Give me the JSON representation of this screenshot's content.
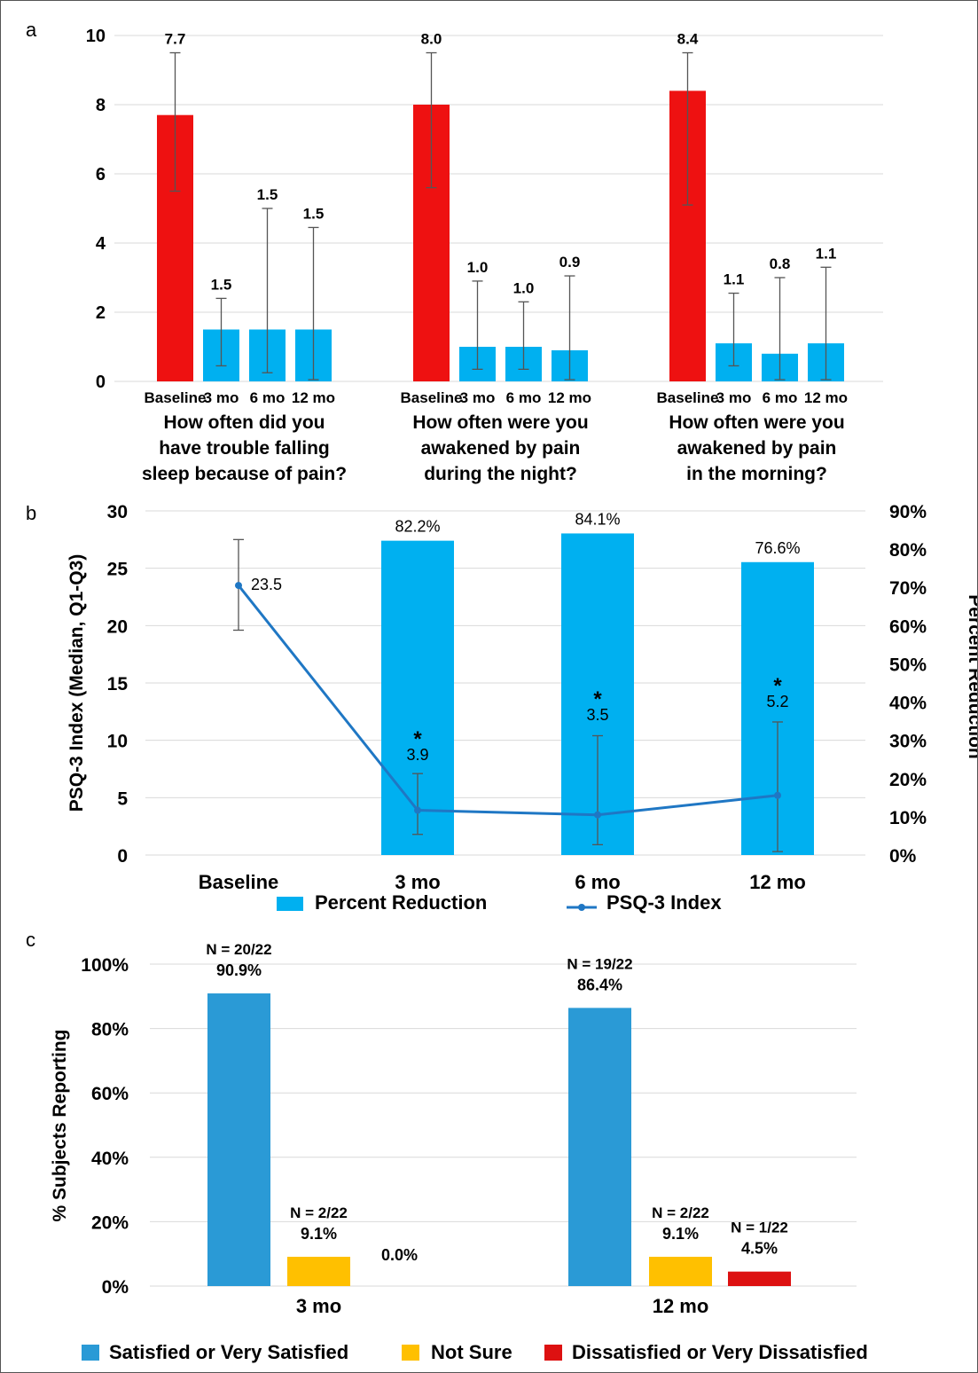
{
  "colors": {
    "red": "#ee1111",
    "cyan": "#00b0f0",
    "blue_c": "#2a9ad6",
    "yellow": "#ffc000",
    "dark_red": "#dd1111",
    "line": "#1f77c4",
    "grid": "#d9d9d9",
    "error": "#555555"
  },
  "chart_data": [
    {
      "panel": "a",
      "type": "bar",
      "ylim": [
        0,
        10
      ],
      "yticks": [
        "0",
        "2",
        "4",
        "6",
        "8",
        "10"
      ],
      "groups": [
        {
          "question": [
            "How often did you",
            "have trouble falling",
            "sleep because of pain?"
          ],
          "bars": [
            {
              "label": "Baseline",
              "value": 7.7,
              "display": "7.7",
              "err_low": 5.5,
              "err_high": 9.5,
              "color": "red"
            },
            {
              "label": "3 mo",
              "value": 1.5,
              "display": "1.5",
              "err_low": 0.45,
              "err_high": 2.4,
              "color": "cyan"
            },
            {
              "label": "6 mo",
              "value": 1.5,
              "display": "1.5",
              "err_low": 0.25,
              "err_high": 5.0,
              "color": "cyan"
            },
            {
              "label": "12 mo",
              "value": 1.5,
              "display": "1.5",
              "err_low": 0.05,
              "err_high": 4.45,
              "color": "cyan"
            }
          ]
        },
        {
          "question": [
            "How often were you",
            "awakened by pain",
            "during the night?"
          ],
          "bars": [
            {
              "label": "Baseline",
              "value": 8.0,
              "display": "8.0",
              "err_low": 5.6,
              "err_high": 9.5,
              "color": "red"
            },
            {
              "label": "3 mo",
              "value": 1.0,
              "display": "1.0",
              "err_low": 0.35,
              "err_high": 2.9,
              "color": "cyan"
            },
            {
              "label": "6 mo",
              "value": 1.0,
              "display": "1.0",
              "err_low": 0.35,
              "err_high": 2.3,
              "color": "cyan"
            },
            {
              "label": "12 mo",
              "value": 0.9,
              "display": "0.9",
              "err_low": 0.05,
              "err_high": 3.05,
              "color": "cyan"
            }
          ]
        },
        {
          "question": [
            "How often were you",
            "awakened by pain",
            "in the morning?"
          ],
          "bars": [
            {
              "label": "Baseline",
              "value": 8.4,
              "display": "8.4",
              "err_low": 5.1,
              "err_high": 9.5,
              "color": "red"
            },
            {
              "label": "3 mo",
              "value": 1.1,
              "display": "1.1",
              "err_low": 0.45,
              "err_high": 2.55,
              "color": "cyan"
            },
            {
              "label": "6 mo",
              "value": 0.8,
              "display": "0.8",
              "err_low": 0.05,
              "err_high": 3.0,
              "color": "cyan"
            },
            {
              "label": "12 mo",
              "value": 1.1,
              "display": "1.1",
              "err_low": 0.05,
              "err_high": 3.3,
              "color": "cyan"
            }
          ]
        }
      ]
    },
    {
      "panel": "b",
      "type": "bar+line",
      "categories": [
        "Baseline",
        "3 mo",
        "6 mo",
        "12 mo"
      ],
      "ylabel": "PSQ-3 Index (Median, Q1-Q3)",
      "ylabel2": "Percent Reduction",
      "ylim": [
        0,
        30
      ],
      "yticks": [
        "0",
        "5",
        "10",
        "15",
        "20",
        "25",
        "30"
      ],
      "ylim2": [
        0,
        90
      ],
      "yticks2": [
        "0%",
        "10%",
        "20%",
        "30%",
        "40%",
        "50%",
        "60%",
        "70%",
        "80%",
        "90%"
      ],
      "bars": {
        "name": "Percent Reduction",
        "values": [
          null,
          82.2,
          84.1,
          76.6
        ],
        "labels": [
          "",
          "82.2%",
          "84.1%",
          "76.6%"
        ]
      },
      "line": {
        "name": "PSQ-3 Index",
        "values": [
          23.5,
          3.9,
          3.5,
          5.2
        ],
        "labels": [
          "23.5",
          "3.9",
          "3.5",
          "5.2"
        ],
        "err_low": [
          19.6,
          1.8,
          0.9,
          0.3
        ],
        "err_high": [
          27.5,
          7.1,
          10.4,
          11.6
        ],
        "marks": [
          "",
          "*",
          "*",
          "*"
        ]
      }
    },
    {
      "panel": "c",
      "type": "bar",
      "categories": [
        "3 mo",
        "12 mo"
      ],
      "ylabel": "% Subjects Reporting",
      "ylim": [
        0,
        100
      ],
      "yticks": [
        "0%",
        "20%",
        "40%",
        "60%",
        "80%",
        "100%"
      ],
      "series": [
        {
          "name": "Satisfied or Very Satisfied",
          "color": "blue_c",
          "values": [
            90.9,
            86.4
          ],
          "labels": [
            "90.9%",
            "86.4%"
          ],
          "n": [
            "N = 20/22",
            "N = 19/22"
          ]
        },
        {
          "name": "Not Sure",
          "color": "yellow",
          "values": [
            9.1,
            9.1
          ],
          "labels": [
            "9.1%",
            "9.1%"
          ],
          "n": [
            "N = 2/22",
            "N = 2/22"
          ]
        },
        {
          "name": "Dissatisfied or Very Dissatisfied",
          "color": "dark_red",
          "values": [
            0.0,
            4.5
          ],
          "labels": [
            "0.0%",
            "4.5%"
          ],
          "n": [
            "",
            "N = 1/22"
          ]
        }
      ]
    }
  ],
  "panel_labels": [
    "a",
    "b",
    "c"
  ]
}
